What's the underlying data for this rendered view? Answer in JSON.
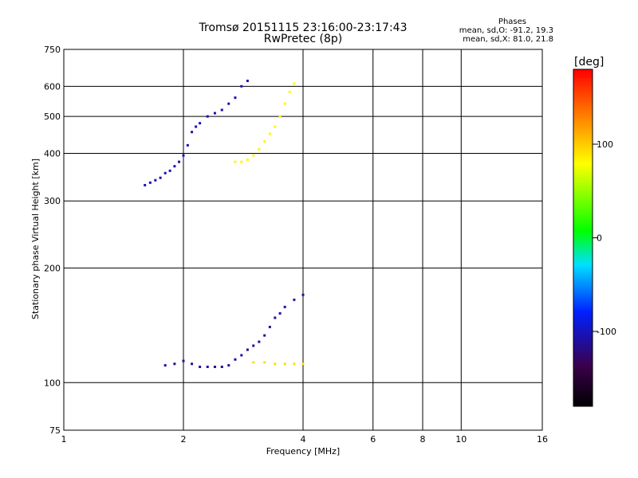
{
  "title": "Tromsø 20151115 23:16:00-23:17:43",
  "subtitle": "RwPretec (8p)",
  "stats": {
    "heading": "Phases",
    "o_line": "mean, sd,O: -91.2, 19.3",
    "x_line": "mean, sd,X:  81.0, 21.8"
  },
  "chart_data": {
    "type": "scatter",
    "xlabel": "Frequency [MHz]",
    "ylabel": "Stationary phase Virtual Height [km]",
    "x_scale": "log",
    "y_scale": "log",
    "xlim": [
      1,
      16
    ],
    "ylim": [
      75,
      750
    ],
    "x_ticks": [
      1,
      2,
      4,
      6,
      8,
      10,
      16
    ],
    "y_ticks": [
      75,
      100,
      200,
      300,
      400,
      500,
      600,
      750
    ],
    "grid": true,
    "colorbar": {
      "label": "[deg]",
      "range": [
        -180,
        180
      ],
      "ticks": [
        100,
        0,
        -100
      ],
      "colors": [
        "#000000",
        "#3a004a",
        "#0020ff",
        "#00e0ff",
        "#00ff00",
        "#ffff00",
        "#ff8000",
        "#ff0000"
      ]
    },
    "series": [
      {
        "description": "O-trace",
        "x": [
          1.6,
          1.65,
          1.7,
          1.75,
          1.8,
          1.85,
          1.9,
          1.95,
          2.0,
          2.05,
          2.1,
          2.15,
          2.2,
          2.3,
          2.4,
          2.5,
          2.6,
          2.7,
          2.8,
          2.9
        ],
        "y": [
          330,
          335,
          340,
          345,
          355,
          360,
          370,
          380,
          395,
          420,
          455,
          470,
          480,
          500,
          510,
          520,
          540,
          560,
          600,
          620
        ],
        "phase": -100
      },
      {
        "description": "X-trace",
        "x": [
          2.7,
          2.8,
          2.9,
          3.0,
          3.1,
          3.2,
          3.3,
          3.4,
          3.5,
          3.6,
          3.7,
          3.8
        ],
        "y": [
          380,
          380,
          385,
          395,
          410,
          430,
          450,
          470,
          500,
          540,
          580,
          610
        ],
        "phase": 80
      },
      {
        "description": "E-region O-trace",
        "x": [
          1.8,
          1.9,
          2.0,
          2.1,
          2.2,
          2.3,
          2.4,
          2.5,
          2.6,
          2.7,
          2.8,
          2.9,
          3.0,
          3.1,
          3.2,
          3.3,
          3.4,
          3.5,
          3.6,
          3.8,
          4.0
        ],
        "y": [
          111,
          112,
          114,
          112,
          110,
          110,
          110,
          110,
          111,
          115,
          118,
          122,
          125,
          128,
          133,
          140,
          148,
          152,
          158,
          165,
          170
        ],
        "phase": -105
      },
      {
        "description": "E-region X-trace",
        "x": [
          3.0,
          3.2,
          3.4,
          3.6,
          3.8,
          4.0
        ],
        "y": [
          113,
          113,
          112,
          112,
          112,
          112
        ],
        "phase": 90
      }
    ]
  }
}
